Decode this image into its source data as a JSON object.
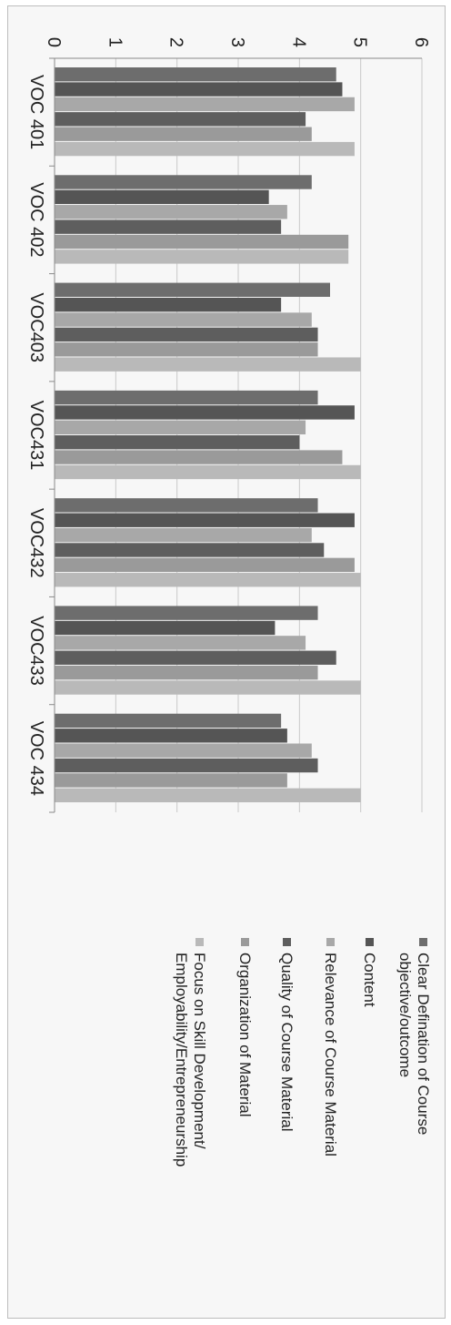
{
  "chart_data": {
    "type": "bar",
    "orientation": "vertical-bars-rotated-page",
    "categories": [
      "VOC 401",
      "VOC 402",
      "VOC403",
      "VOC431",
      "VOC432",
      "VOC433",
      "VOC 434"
    ],
    "ylim": [
      0,
      6
    ],
    "yticks": [
      "0",
      "1",
      "2",
      "3",
      "4",
      "5",
      "6"
    ],
    "grid": true,
    "legend_position": "right",
    "series": [
      {
        "name": "Clear Defination of Course objective/outcome",
        "color": "#6d6d6d",
        "values": [
          4.6,
          4.2,
          4.5,
          4.3,
          4.3,
          4.3,
          3.7
        ]
      },
      {
        "name": "Content",
        "color": "#555555",
        "values": [
          4.7,
          3.5,
          3.7,
          4.9,
          4.9,
          3.6,
          3.8
        ]
      },
      {
        "name": "Relevance of Course Material",
        "color": "#a8a8a8",
        "values": [
          4.9,
          3.8,
          4.2,
          4.1,
          4.2,
          4.1,
          4.2
        ]
      },
      {
        "name": "Quality of Course Material",
        "color": "#5e5e5e",
        "values": [
          4.1,
          3.7,
          4.3,
          4.0,
          4.4,
          4.6,
          4.3
        ]
      },
      {
        "name": "Organization of Material",
        "color": "#9a9a9a",
        "values": [
          4.2,
          4.8,
          4.3,
          4.7,
          4.9,
          4.3,
          3.8
        ]
      },
      {
        "name": "Focus on Skill Development/ Employability/Entrepreneurship",
        "color": "#b9b9b9",
        "values": [
          4.9,
          4.8,
          5.0,
          5.0,
          5.0,
          5.0,
          5.0
        ]
      }
    ]
  }
}
